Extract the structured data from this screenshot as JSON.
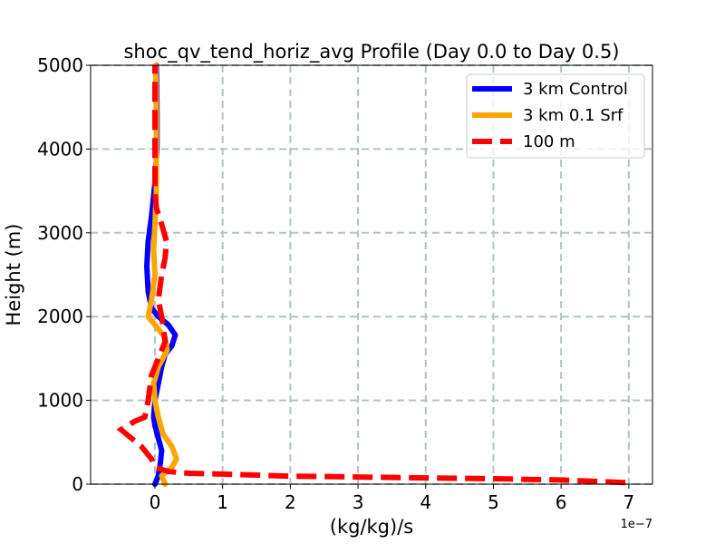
{
  "chart_data": {
    "type": "line",
    "title": "shoc_qv_tend_horiz_avg Profile (Day 0.0 to Day 0.5)",
    "xlabel": "(kg/kg)/s",
    "ylabel": "Height (m)",
    "x_offset_label": "1e−7",
    "xlim": [
      -0.95,
      7.35
    ],
    "ylim": [
      0,
      5000
    ],
    "xticks": [
      0,
      1,
      2,
      3,
      4,
      5,
      6,
      7
    ],
    "xtick_labels": [
      "0",
      "1",
      "2",
      "3",
      "4",
      "5",
      "6",
      "7"
    ],
    "yticks": [
      0,
      1000,
      2000,
      3000,
      4000,
      5000
    ],
    "ytick_labels": [
      "0",
      "1000",
      "2000",
      "3000",
      "4000",
      "5000"
    ],
    "grid": true,
    "legend_position": "top-right",
    "series": [
      {
        "name": "3 km Control",
        "color": "#0000ff",
        "style": "solid",
        "points": [
          [
            0.0,
            0
          ],
          [
            0.05,
            100
          ],
          [
            0.08,
            250
          ],
          [
            0.1,
            400
          ],
          [
            0.05,
            550
          ],
          [
            0.0,
            700
          ],
          [
            -0.02,
            800
          ],
          [
            0.0,
            1000
          ],
          [
            0.05,
            1200
          ],
          [
            0.1,
            1400
          ],
          [
            0.15,
            1550
          ],
          [
            0.25,
            1650
          ],
          [
            0.3,
            1780
          ],
          [
            0.2,
            1900
          ],
          [
            0.05,
            2000
          ],
          [
            -0.05,
            2100
          ],
          [
            -0.1,
            2300
          ],
          [
            -0.12,
            2600
          ],
          [
            -0.1,
            2900
          ],
          [
            -0.05,
            3200
          ],
          [
            0.0,
            3600
          ],
          [
            0.03,
            4000
          ],
          [
            0.03,
            4500
          ],
          [
            0.02,
            5000
          ]
        ]
      },
      {
        "name": "3 km 0.1 Srf",
        "color": "#ffa500",
        "style": "solid",
        "points": [
          [
            0.15,
            0
          ],
          [
            0.1,
            100
          ],
          [
            0.25,
            200
          ],
          [
            0.32,
            300
          ],
          [
            0.25,
            450
          ],
          [
            0.12,
            600
          ],
          [
            0.05,
            800
          ],
          [
            0.0,
            1000
          ],
          [
            -0.02,
            1200
          ],
          [
            0.05,
            1400
          ],
          [
            0.18,
            1600
          ],
          [
            0.15,
            1750
          ],
          [
            0.0,
            1900
          ],
          [
            -0.1,
            2000
          ],
          [
            -0.05,
            2200
          ],
          [
            0.0,
            2500
          ],
          [
            -0.02,
            2800
          ],
          [
            0.0,
            3100
          ],
          [
            0.02,
            3500
          ],
          [
            0.02,
            4000
          ],
          [
            0.02,
            4500
          ],
          [
            0.01,
            5000
          ]
        ]
      },
      {
        "name": "100 m",
        "color": "#ff0000",
        "style": "dashed",
        "points": [
          [
            6.95,
            20
          ],
          [
            6.0,
            50
          ],
          [
            5.0,
            65
          ],
          [
            4.0,
            75
          ],
          [
            3.0,
            85
          ],
          [
            2.0,
            95
          ],
          [
            1.0,
            120
          ],
          [
            0.5,
            130
          ],
          [
            0.2,
            150
          ],
          [
            0.0,
            200
          ],
          [
            -0.05,
            300
          ],
          [
            -0.2,
            450
          ],
          [
            -0.5,
            650
          ],
          [
            -0.3,
            750
          ],
          [
            -0.15,
            800
          ],
          [
            -0.1,
            1000
          ],
          [
            -0.05,
            1300
          ],
          [
            0.05,
            1500
          ],
          [
            0.15,
            1700
          ],
          [
            0.1,
            2000
          ],
          [
            0.05,
            2200
          ],
          [
            0.1,
            2500
          ],
          [
            0.15,
            2700
          ],
          [
            0.17,
            2900
          ],
          [
            0.1,
            3100
          ],
          [
            0.02,
            3300
          ],
          [
            0.0,
            3500
          ],
          [
            0.0,
            4000
          ],
          [
            0.0,
            4500
          ],
          [
            0.0,
            5000
          ]
        ]
      }
    ]
  }
}
